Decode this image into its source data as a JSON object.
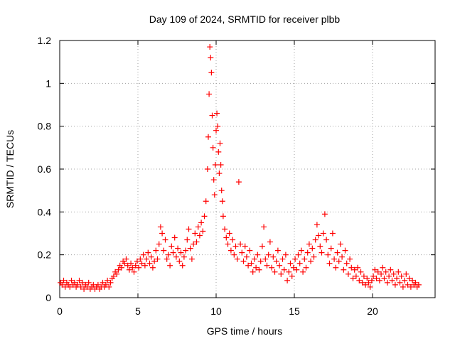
{
  "chart_data": {
    "type": "scatter",
    "title": "Day 109 of 2024, SRMTID for receiver plbb",
    "xlabel": "GPS time / hours",
    "ylabel": "SRMTID / TECUs",
    "xlim": [
      0,
      24
    ],
    "ylim": [
      0,
      1.2
    ],
    "xticks": [
      0,
      5,
      10,
      15,
      20
    ],
    "yticks": [
      0,
      0.2,
      0.4,
      0.6,
      0.8,
      1,
      1.2
    ],
    "xtick_labels": [
      "0",
      "5",
      "10",
      "15",
      "20"
    ],
    "ytick_labels": [
      "0",
      "0.2",
      "0.4",
      "0.6",
      "0.8",
      "1",
      "1.2"
    ],
    "grid": true,
    "marker": "+",
    "color": "#ff0000",
    "series": [
      {
        "name": "SRMTID",
        "points": [
          [
            0.05,
            0.07
          ],
          [
            0.15,
            0.06
          ],
          [
            0.25,
            0.08
          ],
          [
            0.35,
            0.05
          ],
          [
            0.45,
            0.07
          ],
          [
            0.55,
            0.06
          ],
          [
            0.65,
            0.05
          ],
          [
            0.75,
            0.08
          ],
          [
            0.85,
            0.06
          ],
          [
            0.95,
            0.07
          ],
          [
            1.05,
            0.05
          ],
          [
            1.15,
            0.06
          ],
          [
            1.25,
            0.08
          ],
          [
            1.35,
            0.05
          ],
          [
            1.45,
            0.07
          ],
          [
            1.55,
            0.04
          ],
          [
            1.65,
            0.06
          ],
          [
            1.75,
            0.05
          ],
          [
            1.85,
            0.07
          ],
          [
            1.95,
            0.04
          ],
          [
            2.05,
            0.05
          ],
          [
            2.15,
            0.06
          ],
          [
            2.25,
            0.04
          ],
          [
            2.35,
            0.05
          ],
          [
            2.45,
            0.06
          ],
          [
            2.55,
            0.04
          ],
          [
            2.65,
            0.05
          ],
          [
            2.75,
            0.07
          ],
          [
            2.85,
            0.05
          ],
          [
            2.95,
            0.06
          ],
          [
            3.05,
            0.08
          ],
          [
            3.15,
            0.05
          ],
          [
            3.25,
            0.07
          ],
          [
            3.35,
            0.09
          ],
          [
            3.45,
            0.1
          ],
          [
            3.55,
            0.12
          ],
          [
            3.65,
            0.11
          ],
          [
            3.75,
            0.13
          ],
          [
            3.85,
            0.15
          ],
          [
            3.95,
            0.14
          ],
          [
            4.05,
            0.17
          ],
          [
            4.15,
            0.16
          ],
          [
            4.25,
            0.18
          ],
          [
            4.35,
            0.15
          ],
          [
            4.45,
            0.13
          ],
          [
            4.55,
            0.16
          ],
          [
            4.65,
            0.14
          ],
          [
            4.75,
            0.12
          ],
          [
            4.85,
            0.15
          ],
          [
            4.95,
            0.17
          ],
          [
            5.05,
            0.14
          ],
          [
            5.15,
            0.18
          ],
          [
            5.25,
            0.16
          ],
          [
            5.35,
            0.2
          ],
          [
            5.45,
            0.15
          ],
          [
            5.55,
            0.18
          ],
          [
            5.65,
            0.21
          ],
          [
            5.75,
            0.16
          ],
          [
            5.85,
            0.19
          ],
          [
            5.95,
            0.14
          ],
          [
            6.05,
            0.17
          ],
          [
            6.15,
            0.22
          ],
          [
            6.25,
            0.18
          ],
          [
            6.35,
            0.25
          ],
          [
            6.45,
            0.33
          ],
          [
            6.55,
            0.3
          ],
          [
            6.65,
            0.22
          ],
          [
            6.75,
            0.27
          ],
          [
            6.85,
            0.18
          ],
          [
            6.95,
            0.2
          ],
          [
            7.05,
            0.15
          ],
          [
            7.15,
            0.24
          ],
          [
            7.25,
            0.21
          ],
          [
            7.35,
            0.28
          ],
          [
            7.45,
            0.19
          ],
          [
            7.55,
            0.23
          ],
          [
            7.65,
            0.17
          ],
          [
            7.75,
            0.21
          ],
          [
            7.85,
            0.15
          ],
          [
            7.95,
            0.19
          ],
          [
            8.05,
            0.22
          ],
          [
            8.15,
            0.27
          ],
          [
            8.25,
            0.32
          ],
          [
            8.35,
            0.23
          ],
          [
            8.45,
            0.18
          ],
          [
            8.55,
            0.25
          ],
          [
            8.65,
            0.3
          ],
          [
            8.75,
            0.26
          ],
          [
            8.85,
            0.33
          ],
          [
            8.95,
            0.29
          ],
          [
            9.05,
            0.35
          ],
          [
            9.15,
            0.31
          ],
          [
            9.25,
            0.38
          ],
          [
            9.35,
            0.45
          ],
          [
            9.45,
            0.6
          ],
          [
            9.5,
            0.75
          ],
          [
            9.55,
            0.95
          ],
          [
            9.6,
            1.17
          ],
          [
            9.65,
            1.12
          ],
          [
            9.7,
            1.05
          ],
          [
            9.75,
            0.85
          ],
          [
            9.8,
            0.7
          ],
          [
            9.85,
            0.55
          ],
          [
            9.9,
            0.48
          ],
          [
            9.95,
            0.62
          ],
          [
            10.0,
            0.78
          ],
          [
            10.05,
            0.86
          ],
          [
            10.1,
            0.8
          ],
          [
            10.15,
            0.68
          ],
          [
            10.2,
            0.58
          ],
          [
            10.25,
            0.72
          ],
          [
            10.3,
            0.62
          ],
          [
            10.35,
            0.5
          ],
          [
            10.4,
            0.45
          ],
          [
            10.45,
            0.38
          ],
          [
            10.55,
            0.32
          ],
          [
            10.65,
            0.28
          ],
          [
            10.75,
            0.25
          ],
          [
            10.85,
            0.3
          ],
          [
            10.95,
            0.22
          ],
          [
            11.05,
            0.27
          ],
          [
            11.15,
            0.2
          ],
          [
            11.25,
            0.24
          ],
          [
            11.35,
            0.18
          ],
          [
            11.45,
            0.54
          ],
          [
            11.55,
            0.25
          ],
          [
            11.65,
            0.21
          ],
          [
            11.75,
            0.17
          ],
          [
            11.85,
            0.24
          ],
          [
            11.95,
            0.19
          ],
          [
            12.05,
            0.15
          ],
          [
            12.15,
            0.22
          ],
          [
            12.25,
            0.16
          ],
          [
            12.35,
            0.12
          ],
          [
            12.45,
            0.18
          ],
          [
            12.55,
            0.14
          ],
          [
            12.65,
            0.2
          ],
          [
            12.75,
            0.13
          ],
          [
            12.85,
            0.17
          ],
          [
            12.95,
            0.24
          ],
          [
            13.05,
            0.33
          ],
          [
            13.15,
            0.18
          ],
          [
            13.25,
            0.15
          ],
          [
            13.35,
            0.2
          ],
          [
            13.45,
            0.26
          ],
          [
            13.55,
            0.14
          ],
          [
            13.65,
            0.19
          ],
          [
            13.75,
            0.12
          ],
          [
            13.85,
            0.17
          ],
          [
            13.95,
            0.22
          ],
          [
            14.05,
            0.15
          ],
          [
            14.15,
            0.11
          ],
          [
            14.25,
            0.18
          ],
          [
            14.35,
            0.13
          ],
          [
            14.45,
            0.2
          ],
          [
            14.55,
            0.08
          ],
          [
            14.65,
            0.12
          ],
          [
            14.75,
            0.16
          ],
          [
            14.85,
            0.1
          ],
          [
            14.95,
            0.14
          ],
          [
            15.05,
            0.18
          ],
          [
            15.15,
            0.13
          ],
          [
            15.25,
            0.2
          ],
          [
            15.35,
            0.16
          ],
          [
            15.45,
            0.22
          ],
          [
            15.55,
            0.12
          ],
          [
            15.65,
            0.18
          ],
          [
            15.75,
            0.14
          ],
          [
            15.85,
            0.21
          ],
          [
            15.95,
            0.25
          ],
          [
            16.05,
            0.17
          ],
          [
            16.15,
            0.23
          ],
          [
            16.25,
            0.19
          ],
          [
            16.35,
            0.27
          ],
          [
            16.45,
            0.34
          ],
          [
            16.55,
            0.29
          ],
          [
            16.65,
            0.24
          ],
          [
            16.75,
            0.21
          ],
          [
            16.85,
            0.3
          ],
          [
            16.95,
            0.39
          ],
          [
            17.05,
            0.27
          ],
          [
            17.15,
            0.2
          ],
          [
            17.25,
            0.16
          ],
          [
            17.35,
            0.23
          ],
          [
            17.45,
            0.3
          ],
          [
            17.55,
            0.18
          ],
          [
            17.65,
            0.14
          ],
          [
            17.75,
            0.21
          ],
          [
            17.85,
            0.17
          ],
          [
            17.95,
            0.25
          ],
          [
            18.05,
            0.19
          ],
          [
            18.15,
            0.13
          ],
          [
            18.25,
            0.22
          ],
          [
            18.35,
            0.16
          ],
          [
            18.45,
            0.11
          ],
          [
            18.55,
            0.18
          ],
          [
            18.65,
            0.14
          ],
          [
            18.75,
            0.09
          ],
          [
            18.85,
            0.13
          ],
          [
            18.95,
            0.1
          ],
          [
            19.05,
            0.14
          ],
          [
            19.15,
            0.08
          ],
          [
            19.25,
            0.12
          ],
          [
            19.35,
            0.07
          ],
          [
            19.45,
            0.1
          ],
          [
            19.55,
            0.06
          ],
          [
            19.65,
            0.09
          ],
          [
            19.75,
            0.07
          ],
          [
            19.85,
            0.05
          ],
          [
            19.95,
            0.08
          ],
          [
            20.05,
            0.1
          ],
          [
            20.15,
            0.13
          ],
          [
            20.25,
            0.09
          ],
          [
            20.35,
            0.12
          ],
          [
            20.45,
            0.08
          ],
          [
            20.55,
            0.11
          ],
          [
            20.65,
            0.14
          ],
          [
            20.75,
            0.09
          ],
          [
            20.85,
            0.12
          ],
          [
            20.95,
            0.07
          ],
          [
            21.05,
            0.1
          ],
          [
            21.15,
            0.13
          ],
          [
            21.25,
            0.08
          ],
          [
            21.35,
            0.11
          ],
          [
            21.45,
            0.06
          ],
          [
            21.55,
            0.09
          ],
          [
            21.65,
            0.12
          ],
          [
            21.75,
            0.07
          ],
          [
            21.85,
            0.1
          ],
          [
            21.95,
            0.05
          ],
          [
            22.05,
            0.08
          ],
          [
            22.15,
            0.11
          ],
          [
            22.25,
            0.06
          ],
          [
            22.35,
            0.09
          ],
          [
            22.45,
            0.05
          ],
          [
            22.55,
            0.08
          ],
          [
            22.65,
            0.06
          ],
          [
            22.75,
            0.07
          ],
          [
            22.85,
            0.05
          ],
          [
            22.95,
            0.06
          ]
        ]
      }
    ]
  }
}
